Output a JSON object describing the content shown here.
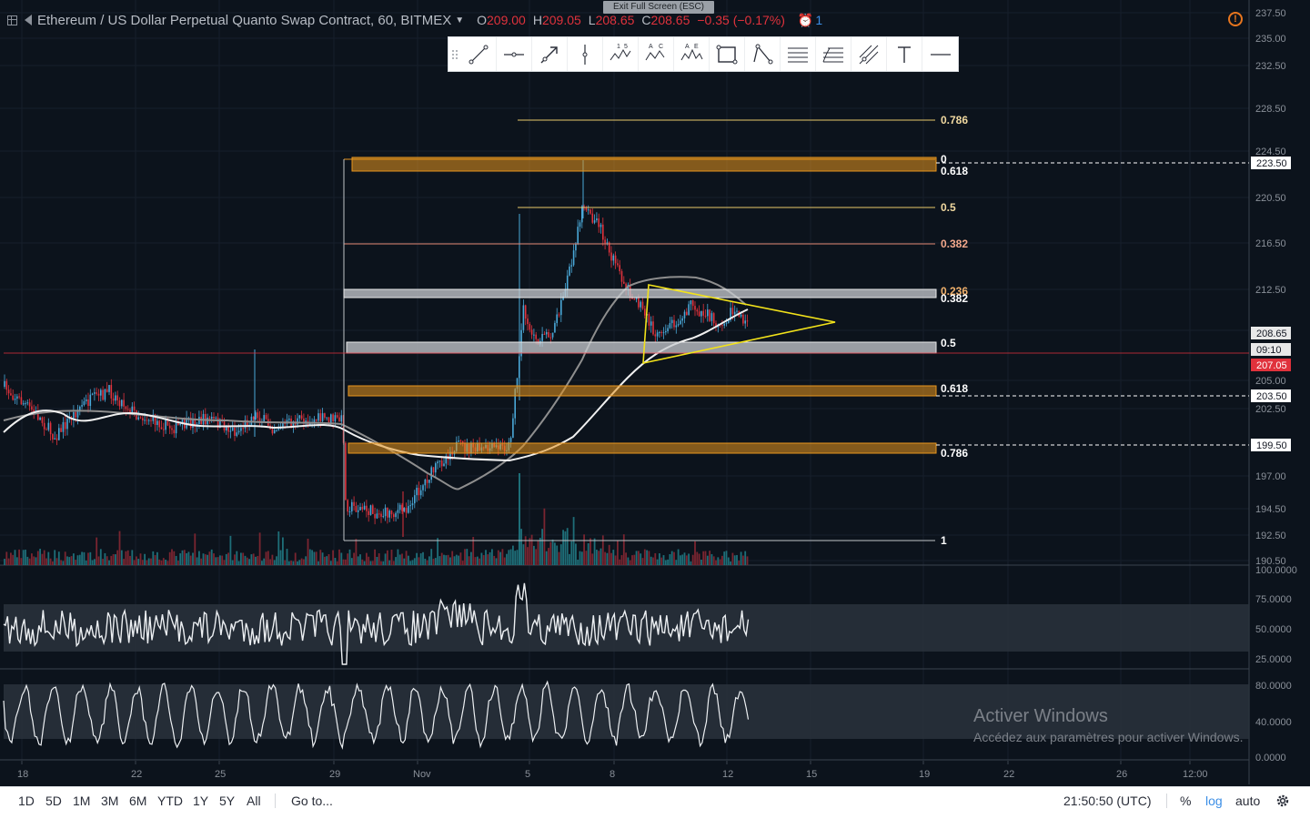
{
  "header": {
    "symbol": "Ethereum / US Dollar Perpetual Quanto Swap Contract, 60, BITMEX",
    "o_label": "O",
    "o_value": "209.00",
    "h_label": "H",
    "h_value": "209.05",
    "l_label": "L",
    "l_value": "208.65",
    "c_label": "C",
    "c_value": "208.65",
    "change": "−0.35 (−0.17%)",
    "alerts_count": "1",
    "exit_fullscreen": "Exit Full Screen (ESC)"
  },
  "toolbar": {
    "tools": [
      "trend-line-tool",
      "horizontal-ray-tool",
      "arrow-tool",
      "vertical-line-tool",
      "elliott-wave-tool",
      "abcd-pattern-tool",
      "head-shoulders-tool",
      "rectangle-tool",
      "triangle-tool",
      "parallel-channel-tool",
      "fib-retracement-tool",
      "pitchfork-tool",
      "text-tool",
      "horizontal-line-tool"
    ],
    "wave_labels": [
      "1",
      "5"
    ],
    "abcd_labels": [
      "A",
      "C"
    ],
    "hs_labels": [
      "A",
      "E"
    ]
  },
  "price_axis": {
    "ticks": [
      "237.50",
      "235.00",
      "232.50",
      "228.50",
      "224.50",
      "220.50",
      "216.50",
      "212.50",
      "209.00",
      "205.00",
      "202.50",
      "197.00",
      "194.50",
      "192.50",
      "190.50"
    ],
    "markers": [
      {
        "label": "223.50",
        "color": "#ffffff"
      },
      {
        "label": "208.65",
        "color": "#e8e8e8"
      },
      {
        "label": "09:10",
        "color": "#e8e8e8"
      },
      {
        "label": "207.05",
        "color": "#e0323c"
      },
      {
        "label": "203.50",
        "color": "#ffffff"
      },
      {
        "label": "199.50",
        "color": "#ffffff"
      }
    ]
  },
  "rsi_axis": {
    "ticks": [
      "100.0000",
      "75.0000",
      "50.0000",
      "25.0000"
    ]
  },
  "stoch_axis": {
    "ticks": [
      "80.0000",
      "40.0000",
      "0.0000"
    ]
  },
  "time_axis": {
    "ticks": [
      "18",
      "22",
      "25",
      "29",
      "Nov",
      "5",
      "8",
      "12",
      "15",
      "19",
      "22",
      "26",
      "12:00"
    ]
  },
  "fib_left": {
    "levels": [
      "0",
      "0.618",
      "0.382",
      "0.5",
      "0.618",
      "0.786",
      "1"
    ]
  },
  "fib_right": {
    "levels": [
      "0.786",
      "0.5",
      "0.382",
      "0.236"
    ]
  },
  "ranges": [
    "1D",
    "5D",
    "1M",
    "3M",
    "6M",
    "YTD",
    "1Y",
    "5Y",
    "All"
  ],
  "goto": "Go to...",
  "clock": "21:50:50 (UTC)",
  "scale_options": {
    "percent": "%",
    "log": "log",
    "auto": "auto"
  },
  "watermark": {
    "title": "Activer Windows",
    "subtitle": "Accédez aux paramètres pour activer Windows."
  },
  "colors": {
    "background": "#0c131c",
    "up": "#4aa8d8",
    "down": "#e0323c",
    "fib_band": "#e8961e",
    "grey_band": "#c8ccd0",
    "triangle": "#f2e21a",
    "ma_white": "#ffffff",
    "ma_grey": "#8e8e8e"
  }
}
